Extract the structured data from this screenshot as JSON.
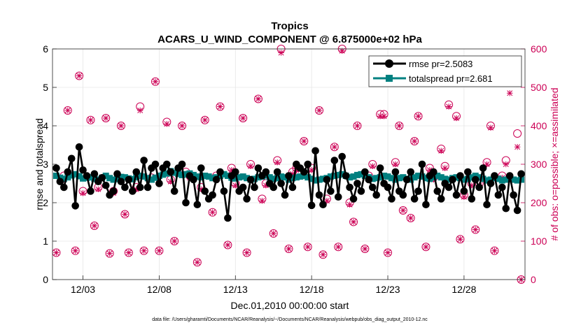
{
  "colors": {
    "rmse": "#000000",
    "totalspread": "#008080",
    "obs": "#cc0055",
    "background": "#ffffff"
  },
  "chart_data": {
    "type": "line",
    "title": "Tropics",
    "subtitle": "ACARS_U_WIND_COMPONENT @ 6.875000e+02 hPa",
    "xlabel": "Dec.01,2010 00:00:00 start",
    "ylabel": "rmse and totalspread",
    "y2label": "# of obs: o=possible; ×=assimilated",
    "footnote": "data file: /Users/gharamti/Documents/NCAR/Reanalysis/~/Documents/NCAR/Reanalysis/webpub/obs_diag_output_2010-12.nc",
    "xlim": [
      1.0,
      32.0
    ],
    "ylim": [
      0,
      6
    ],
    "y2lim": [
      0,
      600
    ],
    "x_ticks": [
      3,
      8,
      13,
      18,
      23,
      28
    ],
    "x_tick_labels": [
      "12/03",
      "12/08",
      "12/13",
      "12/18",
      "12/23",
      "12/28"
    ],
    "y_ticks": [
      0,
      1,
      2,
      3,
      4,
      5,
      6
    ],
    "y_tick_labels": [
      "0",
      "1",
      "2",
      "3",
      "4",
      "5",
      "6"
    ],
    "y2_ticks": [
      0,
      100,
      200,
      300,
      400,
      500,
      600
    ],
    "y2_tick_labels": [
      "0",
      "100",
      "200",
      "300",
      "400",
      "500",
      "600"
    ],
    "legend": [
      {
        "key": "rmse",
        "label": "rmse pr=2.5083"
      },
      {
        "key": "totalspread",
        "label": "totalspread pr=2.681"
      }
    ],
    "x": [
      1.25,
      1.5,
      1.75,
      2.0,
      2.25,
      2.5,
      2.75,
      3.0,
      3.25,
      3.5,
      3.75,
      4.0,
      4.25,
      4.5,
      4.75,
      5.0,
      5.25,
      5.5,
      5.75,
      6.0,
      6.25,
      6.5,
      6.75,
      7.0,
      7.25,
      7.5,
      7.75,
      8.0,
      8.25,
      8.5,
      8.75,
      9.0,
      9.25,
      9.5,
      9.75,
      10.0,
      10.25,
      10.5,
      10.75,
      11.0,
      11.25,
      11.5,
      11.75,
      12.0,
      12.25,
      12.5,
      12.75,
      13.0,
      13.25,
      13.5,
      13.75,
      14.0,
      14.25,
      14.5,
      14.75,
      15.0,
      15.25,
      15.5,
      15.75,
      16.0,
      16.25,
      16.5,
      16.75,
      17.0,
      17.25,
      17.5,
      17.75,
      18.0,
      18.25,
      18.5,
      18.75,
      19.0,
      19.25,
      19.5,
      19.75,
      20.0,
      20.25,
      20.5,
      20.75,
      21.0,
      21.25,
      21.5,
      21.75,
      22.0,
      22.25,
      22.5,
      22.75,
      23.0,
      23.25,
      23.5,
      23.75,
      24.0,
      24.25,
      24.5,
      24.75,
      25.0,
      25.25,
      25.5,
      25.75,
      26.0,
      26.25,
      26.5,
      26.75,
      27.0,
      27.25,
      27.5,
      27.75,
      28.0,
      28.25,
      28.5,
      28.75,
      29.0,
      29.25,
      29.5,
      29.75,
      30.0,
      30.25,
      30.5,
      30.75,
      31.0,
      31.25,
      31.5,
      31.75
    ],
    "series": [
      {
        "name": "rmse pr=2.5083",
        "key": "rmse",
        "values": [
          2.9,
          2.55,
          2.4,
          2.8,
          3.15,
          1.92,
          3.45,
          2.85,
          2.7,
          2.3,
          2.75,
          2.55,
          2.65,
          2.45,
          2.2,
          2.3,
          2.75,
          2.55,
          2.4,
          2.6,
          2.3,
          2.8,
          2.4,
          3.1,
          2.4,
          2.9,
          3.0,
          2.5,
          2.9,
          3.0,
          2.8,
          2.3,
          2.9,
          3.0,
          2.0,
          2.7,
          2.6,
          1.95,
          2.9,
          2.3,
          2.1,
          2.2,
          2.6,
          2.8,
          2.3,
          1.6,
          2.7,
          2.8,
          2.3,
          2.4,
          2.1,
          2.6,
          2.4,
          2.9,
          2.7,
          2.8,
          2.5,
          2.4,
          2.8,
          2.5,
          2.2,
          2.7,
          2.4,
          3.0,
          2.9,
          2.8,
          3.0,
          1.93,
          3.35,
          2.2,
          1.95,
          2.6,
          2.3,
          3.1,
          2.15,
          3.2,
          2.7,
          2.4,
          2.1,
          2.5,
          2.3,
          2.8,
          2.6,
          2.4,
          2.2,
          2.9,
          2.5,
          2.4,
          2.1,
          2.8,
          2.3,
          2.2,
          2.6,
          2.8,
          2.1,
          2.3,
          3.0,
          1.95,
          2.7,
          2.8,
          2.3,
          2.1,
          2.5,
          2.4,
          2.6,
          2.2,
          2.7,
          2.3,
          2.8,
          2.1,
          2.6,
          2.4,
          2.9,
          1.95,
          2.5,
          2.7,
          2.2,
          2.4,
          1.85,
          2.7,
          2.2,
          1.8,
          2.75
        ]
      },
      {
        "name": "totalspread pr=2.681",
        "key": "totalspread",
        "values": [
          2.7,
          2.65,
          2.62,
          2.66,
          2.71,
          2.74,
          2.69,
          2.63,
          2.65,
          2.66,
          2.62,
          2.6,
          2.65,
          2.7,
          2.64,
          2.6,
          2.62,
          2.67,
          2.66,
          2.63,
          2.61,
          2.66,
          2.7,
          2.68,
          2.64,
          2.6,
          2.65,
          2.7,
          2.73,
          2.76,
          2.82,
          2.78,
          2.75,
          2.72,
          2.74,
          2.76,
          2.72,
          2.68,
          2.66,
          2.7,
          2.68,
          2.64,
          2.66,
          2.7,
          2.74,
          2.7,
          2.65,
          2.63,
          2.66,
          2.68,
          2.64,
          2.6,
          2.62,
          2.66,
          2.68,
          2.71,
          2.66,
          2.62,
          2.64,
          2.68,
          2.66,
          2.6,
          2.64,
          2.66,
          2.68,
          2.7,
          2.66,
          2.62,
          2.58,
          2.6,
          2.62,
          2.64,
          2.68,
          2.7,
          2.72,
          2.74,
          2.7,
          2.66,
          2.68,
          2.72,
          2.74,
          2.7,
          2.66,
          2.62,
          2.64,
          2.66,
          2.7,
          2.68,
          2.64,
          2.6,
          2.64,
          2.66,
          2.62,
          2.6,
          2.66,
          2.7,
          2.68,
          2.64,
          2.62,
          2.66,
          2.7,
          2.66,
          2.62,
          2.6,
          2.64,
          2.66,
          2.64,
          2.6,
          2.62,
          2.66,
          2.7,
          2.66,
          2.62,
          2.58,
          2.6,
          2.64,
          2.62,
          2.58,
          2.6,
          2.62,
          2.6,
          2.58,
          2.6
        ]
      }
    ],
    "obs_possible": {
      "x": [
        1.25,
        1.75,
        2.0,
        2.5,
        2.75,
        3.0,
        3.5,
        3.75,
        4.0,
        4.5,
        4.75,
        5.0,
        5.5,
        5.75,
        6.0,
        6.5,
        6.75,
        7.0,
        7.5,
        7.75,
        8.0,
        8.5,
        8.75,
        9.0,
        9.5,
        9.75,
        10.0,
        10.5,
        10.75,
        11.0,
        11.5,
        11.75,
        12.0,
        12.5,
        12.75,
        13.0,
        13.5,
        13.75,
        14.0,
        14.5,
        14.75,
        15.0,
        15.5,
        15.75,
        16.0,
        16.5,
        16.75,
        17.0,
        17.5,
        17.75,
        18.0,
        18.5,
        18.75,
        19.0,
        19.5,
        19.75,
        20.0,
        20.5,
        20.75,
        21.0,
        21.5,
        21.75,
        22.0,
        22.5,
        22.75,
        23.0,
        23.5,
        23.75,
        24.0,
        24.5,
        24.75,
        25.0,
        25.5,
        25.75,
        26.0,
        26.5,
        26.75,
        27.0,
        27.5,
        27.75,
        28.0,
        28.5,
        28.75,
        29.0,
        29.5,
        29.75,
        30.0,
        30.5,
        30.75,
        31.0,
        31.5,
        31.75
      ],
      "values": [
        70,
        270,
        440,
        75,
        530,
        230,
        415,
        140,
        240,
        420,
        68,
        230,
        400,
        170,
        70,
        240,
        450,
        75,
        265,
        515,
        75,
        410,
        260,
        100,
        400,
        280,
        270,
        45,
        240,
        415,
        175,
        270,
        450,
        90,
        290,
        250,
        420,
        70,
        300,
        470,
        210,
        250,
        120,
        310,
        600,
        80,
        280,
        290,
        360,
        85,
        290,
        440,
        65,
        210,
        345,
        85,
        600,
        200,
        150,
        400,
        80,
        270,
        300,
        430,
        430,
        70,
        305,
        400,
        180,
        160,
        360,
        425,
        85,
        290,
        265,
        340,
        295,
        455,
        425,
        105,
        220,
        250,
        130,
        250,
        305,
        400,
        75,
        270,
        310,
        515,
        380,
        0
      ]
    },
    "obs_assimilated": {
      "x": [
        1.25,
        1.75,
        2.0,
        2.5,
        2.75,
        3.0,
        3.5,
        3.75,
        4.0,
        4.5,
        4.75,
        5.0,
        5.5,
        5.75,
        6.0,
        6.5,
        6.75,
        7.0,
        7.5,
        7.75,
        8.0,
        8.5,
        8.75,
        9.0,
        9.5,
        9.75,
        10.0,
        10.5,
        10.75,
        11.0,
        11.5,
        11.75,
        12.0,
        12.5,
        12.75,
        13.0,
        13.5,
        13.75,
        14.0,
        14.5,
        14.75,
        15.0,
        15.5,
        15.75,
        16.0,
        16.5,
        16.75,
        17.0,
        17.5,
        17.75,
        18.0,
        18.5,
        18.75,
        19.0,
        19.5,
        19.75,
        20.0,
        20.5,
        20.75,
        21.0,
        21.5,
        21.75,
        22.0,
        22.5,
        22.75,
        23.0,
        23.5,
        23.75,
        24.0,
        24.5,
        24.75,
        25.0,
        25.5,
        25.75,
        26.0,
        26.5,
        26.75,
        27.0,
        27.5,
        27.75,
        28.0,
        28.5,
        28.75,
        29.0,
        29.5,
        29.75,
        30.0,
        30.5,
        30.75,
        31.0,
        31.5,
        31.75
      ],
      "values": [
        70,
        260,
        440,
        75,
        530,
        225,
        415,
        140,
        235,
        420,
        68,
        225,
        400,
        170,
        70,
        235,
        440,
        75,
        260,
        515,
        75,
        405,
        255,
        100,
        400,
        275,
        265,
        45,
        235,
        415,
        175,
        265,
        450,
        90,
        285,
        245,
        420,
        70,
        295,
        470,
        205,
        245,
        120,
        305,
        590,
        80,
        275,
        285,
        360,
        85,
        285,
        440,
        65,
        205,
        345,
        85,
        595,
        195,
        150,
        400,
        80,
        265,
        295,
        425,
        425,
        70,
        300,
        400,
        180,
        160,
        360,
        425,
        85,
        285,
        260,
        335,
        290,
        450,
        420,
        105,
        215,
        245,
        130,
        245,
        300,
        395,
        75,
        265,
        300,
        485,
        345,
        0
      ]
    }
  }
}
